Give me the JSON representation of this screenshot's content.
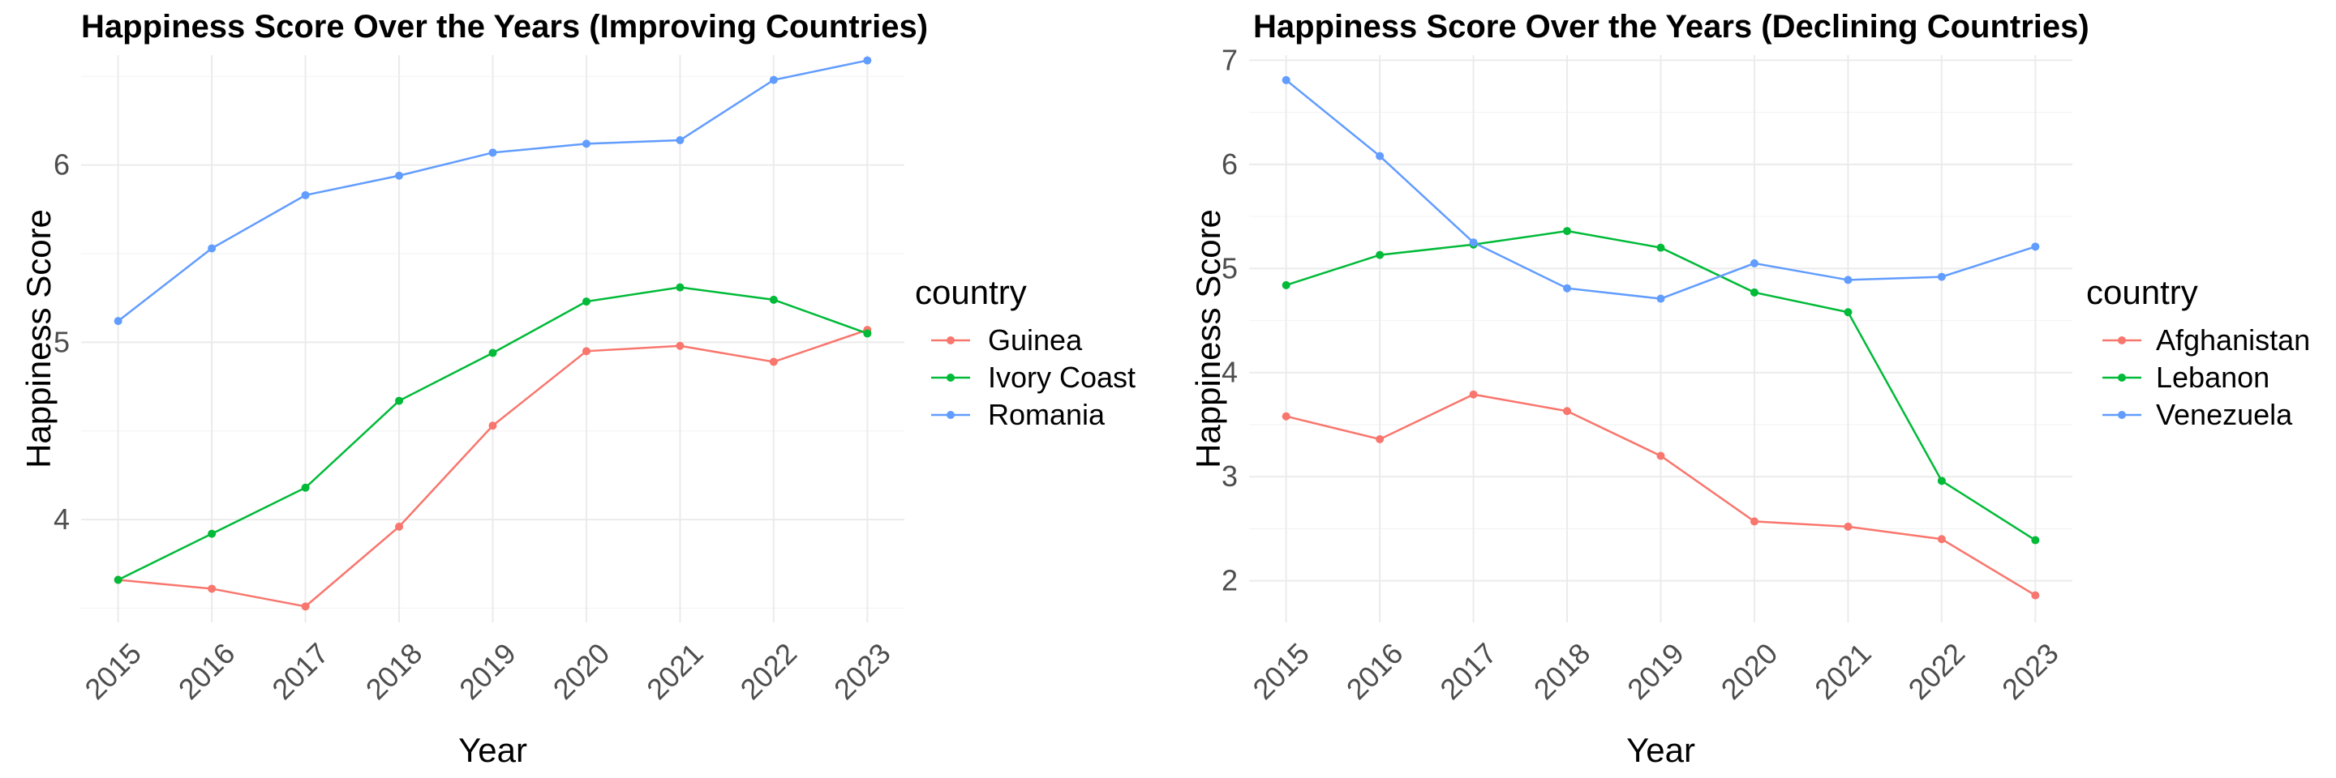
{
  "chart_data": [
    {
      "type": "line",
      "title": "Happiness Score Over the Years (Improving Countries)",
      "xlabel": "Year",
      "ylabel": "Happiness Score",
      "x": [
        2015,
        2016,
        2017,
        2018,
        2019,
        2020,
        2021,
        2022,
        2023
      ],
      "ylim": [
        3.42,
        6.62
      ],
      "yticks": [
        4,
        5,
        6
      ],
      "legend_title": "country",
      "legend_position": "right",
      "grid": true,
      "series": [
        {
          "name": "Guinea",
          "color": "#F8766D",
          "values": [
            3.66,
            3.61,
            3.51,
            3.96,
            4.53,
            4.95,
            4.98,
            4.89,
            5.07
          ]
        },
        {
          "name": "Ivory Coast",
          "color": "#00BA38",
          "values": [
            3.66,
            3.92,
            4.18,
            4.67,
            4.94,
            5.23,
            5.31,
            5.24,
            5.05
          ]
        },
        {
          "name": "Romania",
          "color": "#619CFF",
          "values": [
            5.12,
            5.53,
            5.83,
            5.94,
            6.07,
            6.12,
            6.14,
            6.48,
            6.59
          ]
        }
      ]
    },
    {
      "type": "line",
      "title": "Happiness Score Over the Years (Declining Countries)",
      "xlabel": "Year",
      "ylabel": "Happiness Score",
      "x": [
        2015,
        2016,
        2017,
        2018,
        2019,
        2020,
        2021,
        2022,
        2023
      ],
      "ylim": [
        1.6,
        7.05
      ],
      "yticks": [
        2,
        3,
        4,
        5,
        6,
        7
      ],
      "legend_title": "country",
      "legend_position": "right",
      "grid": true,
      "series": [
        {
          "name": "Afghanistan",
          "color": "#F8766D",
          "values": [
            3.58,
            3.36,
            3.79,
            3.63,
            3.2,
            2.57,
            2.52,
            2.4,
            1.86
          ]
        },
        {
          "name": "Lebanon",
          "color": "#00BA38",
          "values": [
            4.84,
            5.13,
            5.23,
            5.36,
            5.2,
            4.77,
            4.58,
            2.96,
            2.39
          ]
        },
        {
          "name": "Venezuela",
          "color": "#619CFF",
          "values": [
            6.81,
            6.08,
            5.25,
            4.81,
            4.71,
            5.05,
            4.89,
            4.92,
            5.21
          ]
        }
      ]
    }
  ]
}
